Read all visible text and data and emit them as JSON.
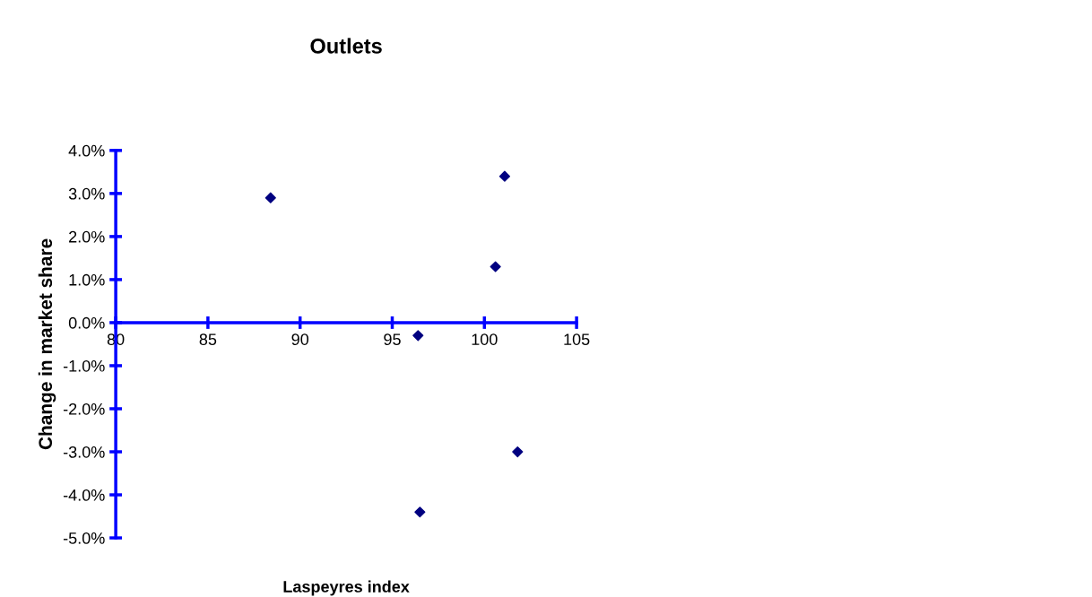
{
  "chart_data": {
    "type": "scatter",
    "title": "Outlets",
    "xlabel": "Laspeyres index",
    "ylabel": "Change in market share",
    "x": [
      88.4,
      101.1,
      100.6,
      96.4,
      101.8,
      96.5
    ],
    "series": [
      {
        "color": "#000080",
        "values": [
          2.9,
          3.4,
          1.3,
          -0.3,
          -3.0,
          -4.4
        ]
      }
    ],
    "marker": "diamond",
    "grid": false,
    "legend": false,
    "xlim": [
      80,
      105
    ],
    "xticks": [
      80,
      85,
      90,
      95,
      100,
      105
    ],
    "ylim": [
      -5,
      4
    ],
    "yticks": [
      {
        "value": 4,
        "label": "4.0%"
      },
      {
        "value": 3,
        "label": "3.0%"
      },
      {
        "value": 2,
        "label": "2.0%"
      },
      {
        "value": 1,
        "label": "1.0%"
      },
      {
        "value": 0,
        "label": "0.0%"
      },
      {
        "value": -1,
        "label": "-1.0%"
      },
      {
        "value": -2,
        "label": "-2.0%"
      },
      {
        "value": -3,
        "label": "-3.0%"
      },
      {
        "value": -4,
        "label": "-4.0%"
      },
      {
        "value": -5,
        "label": "-5.0%"
      }
    ]
  }
}
